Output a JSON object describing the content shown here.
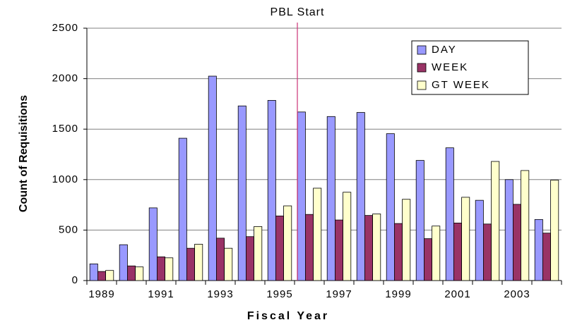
{
  "chart_data": {
    "type": "bar",
    "annotation": "PBL Start",
    "xlabel": "Fiscal Year",
    "ylabel": "Count of Requisitions",
    "categories": [
      "1989",
      null,
      "1991",
      null,
      "1993",
      null,
      "1995",
      null,
      "1997",
      null,
      "1999",
      null,
      "2001",
      null,
      "2003",
      null
    ],
    "series": [
      {
        "name": "DAY",
        "color": "#9999ff",
        "values": [
          165,
          355,
          720,
          1410,
          2025,
          1730,
          1785,
          1670,
          1625,
          1665,
          1455,
          1190,
          1315,
          795,
          1000,
          605
        ]
      },
      {
        "name": "WEEK",
        "color": "#993366",
        "values": [
          90,
          145,
          235,
          320,
          420,
          435,
          640,
          655,
          600,
          645,
          565,
          415,
          570,
          560,
          755,
          470
        ]
      },
      {
        "name": "GT WEEK",
        "color": "#ffffcc",
        "values": [
          100,
          135,
          225,
          360,
          320,
          535,
          740,
          915,
          875,
          660,
          805,
          540,
          825,
          1180,
          1090,
          995
        ]
      }
    ],
    "ylim": [
      0,
      2500
    ],
    "yticks": [
      0,
      500,
      1000,
      1500,
      2000,
      2500
    ],
    "grid": true,
    "legend": "top-right"
  }
}
